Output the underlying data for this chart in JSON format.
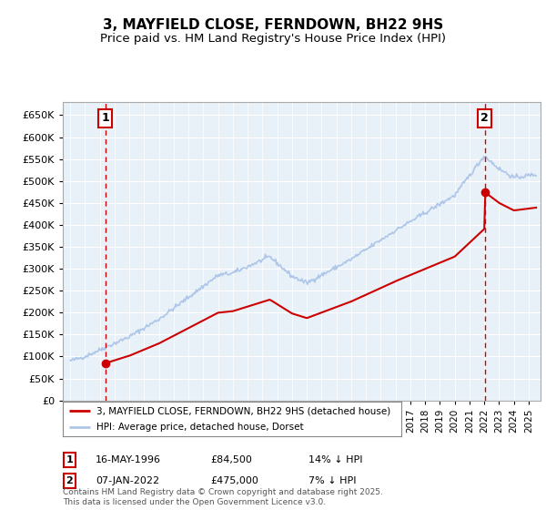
{
  "title": "3, MAYFIELD CLOSE, FERNDOWN, BH22 9HS",
  "subtitle": "Price paid vs. HM Land Registry's House Price Index (HPI)",
  "legend_line1": "3, MAYFIELD CLOSE, FERNDOWN, BH22 9HS (detached house)",
  "legend_line2": "HPI: Average price, detached house, Dorset",
  "sale1_date": "16-MAY-1996",
  "sale1_price": "£84,500",
  "sale1_hpi": "14% ↓ HPI",
  "sale2_date": "07-JAN-2022",
  "sale2_price": "£475,000",
  "sale2_hpi": "7% ↓ HPI",
  "sale1_year": 1996.37,
  "sale1_val": 84500,
  "sale2_year": 2022.02,
  "sale2_val": 475000,
  "footer": "Contains HM Land Registry data © Crown copyright and database right 2025.\nThis data is licensed under the Open Government Licence v3.0.",
  "hpi_color": "#aec6e8",
  "price_color": "#cc0000",
  "ylim": [
    0,
    680000
  ],
  "yticks": [
    0,
    50000,
    100000,
    150000,
    200000,
    250000,
    300000,
    350000,
    400000,
    450000,
    500000,
    550000,
    600000,
    650000
  ],
  "plot_bg_color": "#e8f0f8",
  "grid_color": "#ffffff",
  "title_fontsize": 11,
  "subtitle_fontsize": 9.5
}
